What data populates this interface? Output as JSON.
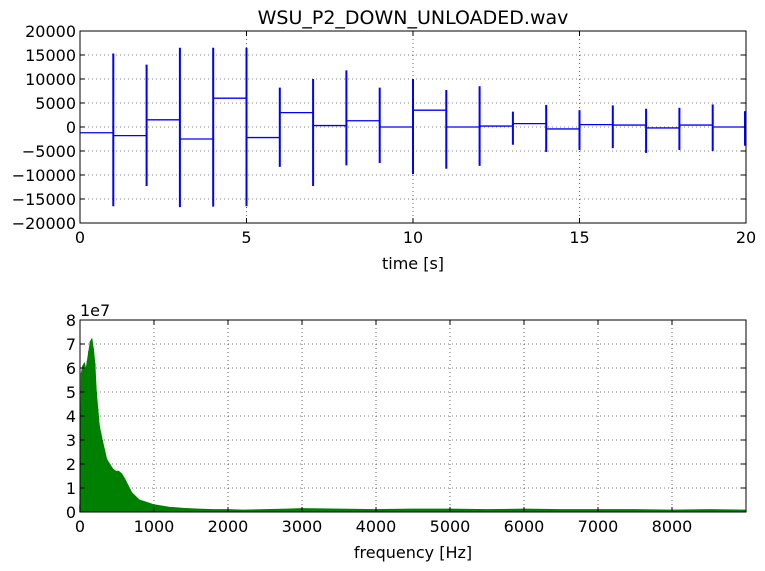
{
  "chart_data": [
    {
      "type": "line",
      "title": "WSU_P2_DOWN_UNLOADED.wav",
      "xlabel": "time [s]",
      "ylabel": "",
      "xlim": [
        0,
        20
      ],
      "ylim": [
        -20000,
        20000
      ],
      "xticks": [
        "0",
        "5",
        "10",
        "15",
        "20"
      ],
      "yticks": [
        "20000",
        "15000",
        "10000",
        "5000",
        "0",
        "−5000",
        "−10000",
        "−15000",
        "−20000"
      ],
      "grid": true,
      "color": "#0000ff",
      "series": [
        {
          "baseline_segments": [
            {
              "x_start": 0,
              "x_end": 1,
              "y": -1200
            },
            {
              "x_start": 1,
              "x_end": 2,
              "y": -1800
            },
            {
              "x_start": 2,
              "x_end": 3,
              "y": 1500
            },
            {
              "x_start": 3,
              "x_end": 4,
              "y": -2500
            },
            {
              "x_start": 4,
              "x_end": 5,
              "y": 6000
            },
            {
              "x_start": 5,
              "x_end": 6,
              "y": -2200
            },
            {
              "x_start": 6,
              "x_end": 7,
              "y": 3000
            },
            {
              "x_start": 7,
              "x_end": 8,
              "y": 300
            },
            {
              "x_start": 8,
              "x_end": 9,
              "y": 1300
            },
            {
              "x_start": 9,
              "x_end": 10,
              "y": 0
            },
            {
              "x_start": 10,
              "x_end": 11,
              "y": 3500
            },
            {
              "x_start": 11,
              "x_end": 12,
              "y": 0
            },
            {
              "x_start": 12,
              "x_end": 13,
              "y": 200
            },
            {
              "x_start": 13,
              "x_end": 14,
              "y": 700
            },
            {
              "x_start": 14,
              "x_end": 15,
              "y": -400
            },
            {
              "x_start": 15,
              "x_end": 16,
              "y": 500
            },
            {
              "x_start": 16,
              "x_end": 17,
              "y": 400
            },
            {
              "x_start": 17,
              "x_end": 18,
              "y": -200
            },
            {
              "x_start": 18,
              "x_end": 19,
              "y": 400
            },
            {
              "x_start": 19,
              "x_end": 20,
              "y": 0
            }
          ],
          "spikes": [
            {
              "x": 1.0,
              "ymax": 15300,
              "ymin": -16500
            },
            {
              "x": 2.0,
              "ymax": 13000,
              "ymin": -12300
            },
            {
              "x": 3.0,
              "ymax": 16500,
              "ymin": -16700
            },
            {
              "x": 4.0,
              "ymax": 16500,
              "ymin": -16600
            },
            {
              "x": 5.0,
              "ymax": 16500,
              "ymin": -16500
            },
            {
              "x": 6.0,
              "ymax": 8200,
              "ymin": -8300
            },
            {
              "x": 7.0,
              "ymax": 10000,
              "ymin": -12300
            },
            {
              "x": 8.0,
              "ymax": 11800,
              "ymin": -8000
            },
            {
              "x": 9.0,
              "ymax": 8200,
              "ymin": -7500
            },
            {
              "x": 10.0,
              "ymax": 10000,
              "ymin": -9800
            },
            {
              "x": 11.0,
              "ymax": 7700,
              "ymin": -8700
            },
            {
              "x": 12.0,
              "ymax": 8500,
              "ymin": -8100
            },
            {
              "x": 13.0,
              "ymax": 3200,
              "ymin": -3700
            },
            {
              "x": 14.0,
              "ymax": 4600,
              "ymin": -5200
            },
            {
              "x": 15.0,
              "ymax": 3500,
              "ymin": -4800
            },
            {
              "x": 16.0,
              "ymax": 4500,
              "ymin": -4400
            },
            {
              "x": 17.0,
              "ymax": 3800,
              "ymin": -5400
            },
            {
              "x": 18.0,
              "ymax": 4000,
              "ymin": -4800
            },
            {
              "x": 19.0,
              "ymax": 4700,
              "ymin": -5000
            },
            {
              "x": 20.0,
              "ymax": 3300,
              "ymin": -3900
            }
          ]
        }
      ]
    },
    {
      "type": "area",
      "title": "",
      "xlabel": "frequency [Hz]",
      "ylabel": "",
      "offset_label": "1e7",
      "xlim": [
        0,
        9000
      ],
      "ylim": [
        0,
        8
      ],
      "xticks": [
        "0",
        "1000",
        "2000",
        "3000",
        "4000",
        "5000",
        "6000",
        "7000",
        "8000"
      ],
      "yticks": [
        "8",
        "7",
        "6",
        "5",
        "4",
        "3",
        "2",
        "1",
        "0"
      ],
      "grid": true,
      "color": "#008000",
      "series": [
        {
          "x": [
            0,
            20,
            40,
            60,
            80,
            100,
            120,
            140,
            160,
            180,
            200,
            220,
            240,
            260,
            280,
            300,
            330,
            360,
            400,
            440,
            480,
            520,
            560,
            600,
            650,
            700,
            750,
            800,
            900,
            1000,
            1100,
            1200,
            1400,
            1600,
            1800,
            2000,
            2200,
            2500,
            2800,
            3000,
            3500,
            4000,
            4500,
            5000,
            5500,
            6000,
            6500,
            7000,
            7500,
            8000,
            8500,
            9000
          ],
          "y": [
            0.3,
            5.8,
            6.1,
            6.2,
            5.9,
            6.3,
            6.7,
            7.1,
            7.2,
            6.8,
            6.2,
            5.0,
            4.3,
            3.6,
            3.3,
            3.0,
            2.6,
            2.2,
            2.0,
            1.8,
            1.7,
            1.7,
            1.6,
            1.4,
            1.1,
            0.8,
            0.65,
            0.5,
            0.4,
            0.3,
            0.25,
            0.2,
            0.15,
            0.12,
            0.1,
            0.1,
            0.08,
            0.1,
            0.12,
            0.14,
            0.12,
            0.1,
            0.12,
            0.12,
            0.1,
            0.12,
            0.1,
            0.1,
            0.1,
            0.08,
            0.1,
            0.08
          ]
        }
      ]
    }
  ]
}
